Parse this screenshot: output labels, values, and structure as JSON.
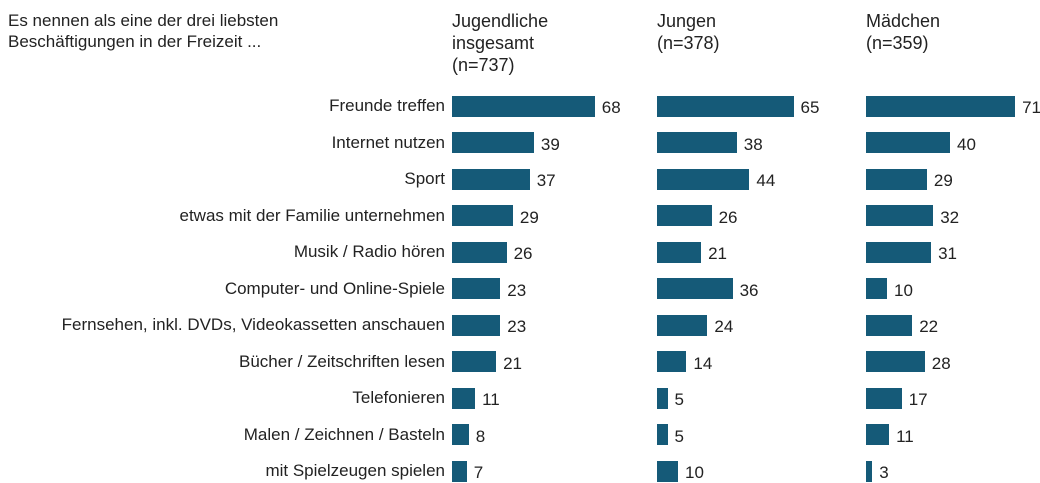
{
  "chart_data": {
    "type": "bar",
    "title": "Es nennen als eine der drei liebsten Beschäftigungen in der Freizeit ...",
    "categories": [
      "Freunde treffen",
      "Internet nutzen",
      "Sport",
      "etwas mit der Familie unternehmen",
      "Musik / Radio hören",
      "Computer- und Online-Spiele",
      "Fernsehen, inkl. DVDs, Videokassetten anschauen",
      "Bücher / Zeitschriften lesen",
      "Telefonieren",
      "Malen / Zeichnen / Basteln",
      "mit Spielzeugen spielen"
    ],
    "series": [
      {
        "name": "Jugendliche insgesamt (n=737)",
        "color": "#155a78",
        "values": [
          68,
          39,
          37,
          29,
          26,
          23,
          23,
          21,
          11,
          8,
          7
        ]
      },
      {
        "name": "Jungen (n=378)",
        "color": "#155a78",
        "values": [
          65,
          38,
          44,
          26,
          21,
          36,
          24,
          14,
          5,
          5,
          10
        ]
      },
      {
        "name": "Mädchen (n=359)",
        "color": "#155a78",
        "values": [
          71,
          40,
          29,
          32,
          31,
          10,
          22,
          28,
          17,
          11,
          3
        ]
      }
    ]
  }
}
